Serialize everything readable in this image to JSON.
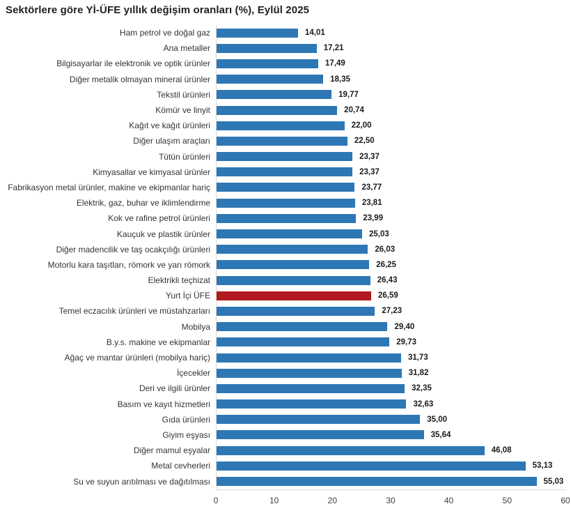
{
  "title": "Sektörlere göre Yİ-ÜFE yıllık değişim oranları (%), Eylül 2025",
  "colors": {
    "bar": "#2E77B5",
    "highlight_bar": "#B11A1F",
    "axis_line": "#D9D9D9",
    "title_text": "#1F1F1F",
    "label_text": "#333333",
    "value_text": "#1A1A1A",
    "tick_text": "#404040"
  },
  "chart_data": {
    "type": "bar",
    "orientation": "horizontal",
    "title": "Sektörlere göre Yİ-ÜFE yıllık değişim oranları (%), Eylül 2025",
    "xlabel": "",
    "ylabel": "",
    "xlim": [
      0,
      60
    ],
    "x_ticks": [
      0,
      10,
      20,
      30,
      40,
      50,
      60
    ],
    "grid": false,
    "legend": false,
    "highlight_index": 17,
    "highlight_label": "Yurt İçi ÜFE",
    "categories": [
      "Ham petrol ve doğal gaz",
      "Ana metaller",
      "Bilgisayarlar ile elektronik ve optik ürünler",
      "Diğer metalik olmayan mineral ürünler",
      "Tekstil ürünleri",
      "Kömür ve linyit",
      "Kağıt ve kağıt ürünleri",
      "Diğer ulaşım araçları",
      "Tütün ürünleri",
      "Kimyasallar ve kimyasal ürünler",
      "Fabrikasyon metal ürünler, makine ve ekipmanlar hariç",
      "Elektrik, gaz, buhar ve iklimlendirme",
      "Kok ve rafine petrol ürünleri",
      "Kauçuk ve plastik ürünler",
      "Diğer madencilik ve taş ocakçılığı ürünleri",
      "Motorlu kara taşıtları, römork ve yarı römork",
      "Elektrikli teçhizat",
      "Yurt İçi ÜFE",
      "Temel eczacılık ürünleri ve müstahzarları",
      "Mobilya",
      "B.y.s. makine ve ekipmanlar",
      "Ağaç ve mantar ürünleri (mobilya hariç)",
      "İçecekler",
      "Deri ve ilgili ürünler",
      "Basım ve kayıt hizmetleri",
      "Gıda ürünleri",
      "Giyim eşyası",
      "Diğer mamul eşyalar",
      "Metal cevherleri",
      "Su ve suyun arıtılması ve dağıtılması"
    ],
    "values": [
      14.01,
      17.21,
      17.49,
      18.35,
      19.77,
      20.74,
      22.0,
      22.5,
      23.37,
      23.37,
      23.77,
      23.81,
      23.99,
      25.03,
      26.03,
      26.25,
      26.43,
      26.59,
      27.23,
      29.4,
      29.73,
      31.73,
      31.82,
      32.35,
      32.63,
      35.0,
      35.64,
      46.08,
      53.13,
      55.03
    ],
    "value_labels": [
      "14,01",
      "17,21",
      "17,49",
      "18,35",
      "19,77",
      "20,74",
      "22,00",
      "22,50",
      "23,37",
      "23,37",
      "23,77",
      "23,81",
      "23,99",
      "25,03",
      "26,03",
      "26,25",
      "26,43",
      "26,59",
      "27,23",
      "29,40",
      "29,73",
      "31,73",
      "31,82",
      "32,35",
      "32,63",
      "35,00",
      "35,64",
      "46,08",
      "53,13",
      "55,03"
    ]
  }
}
